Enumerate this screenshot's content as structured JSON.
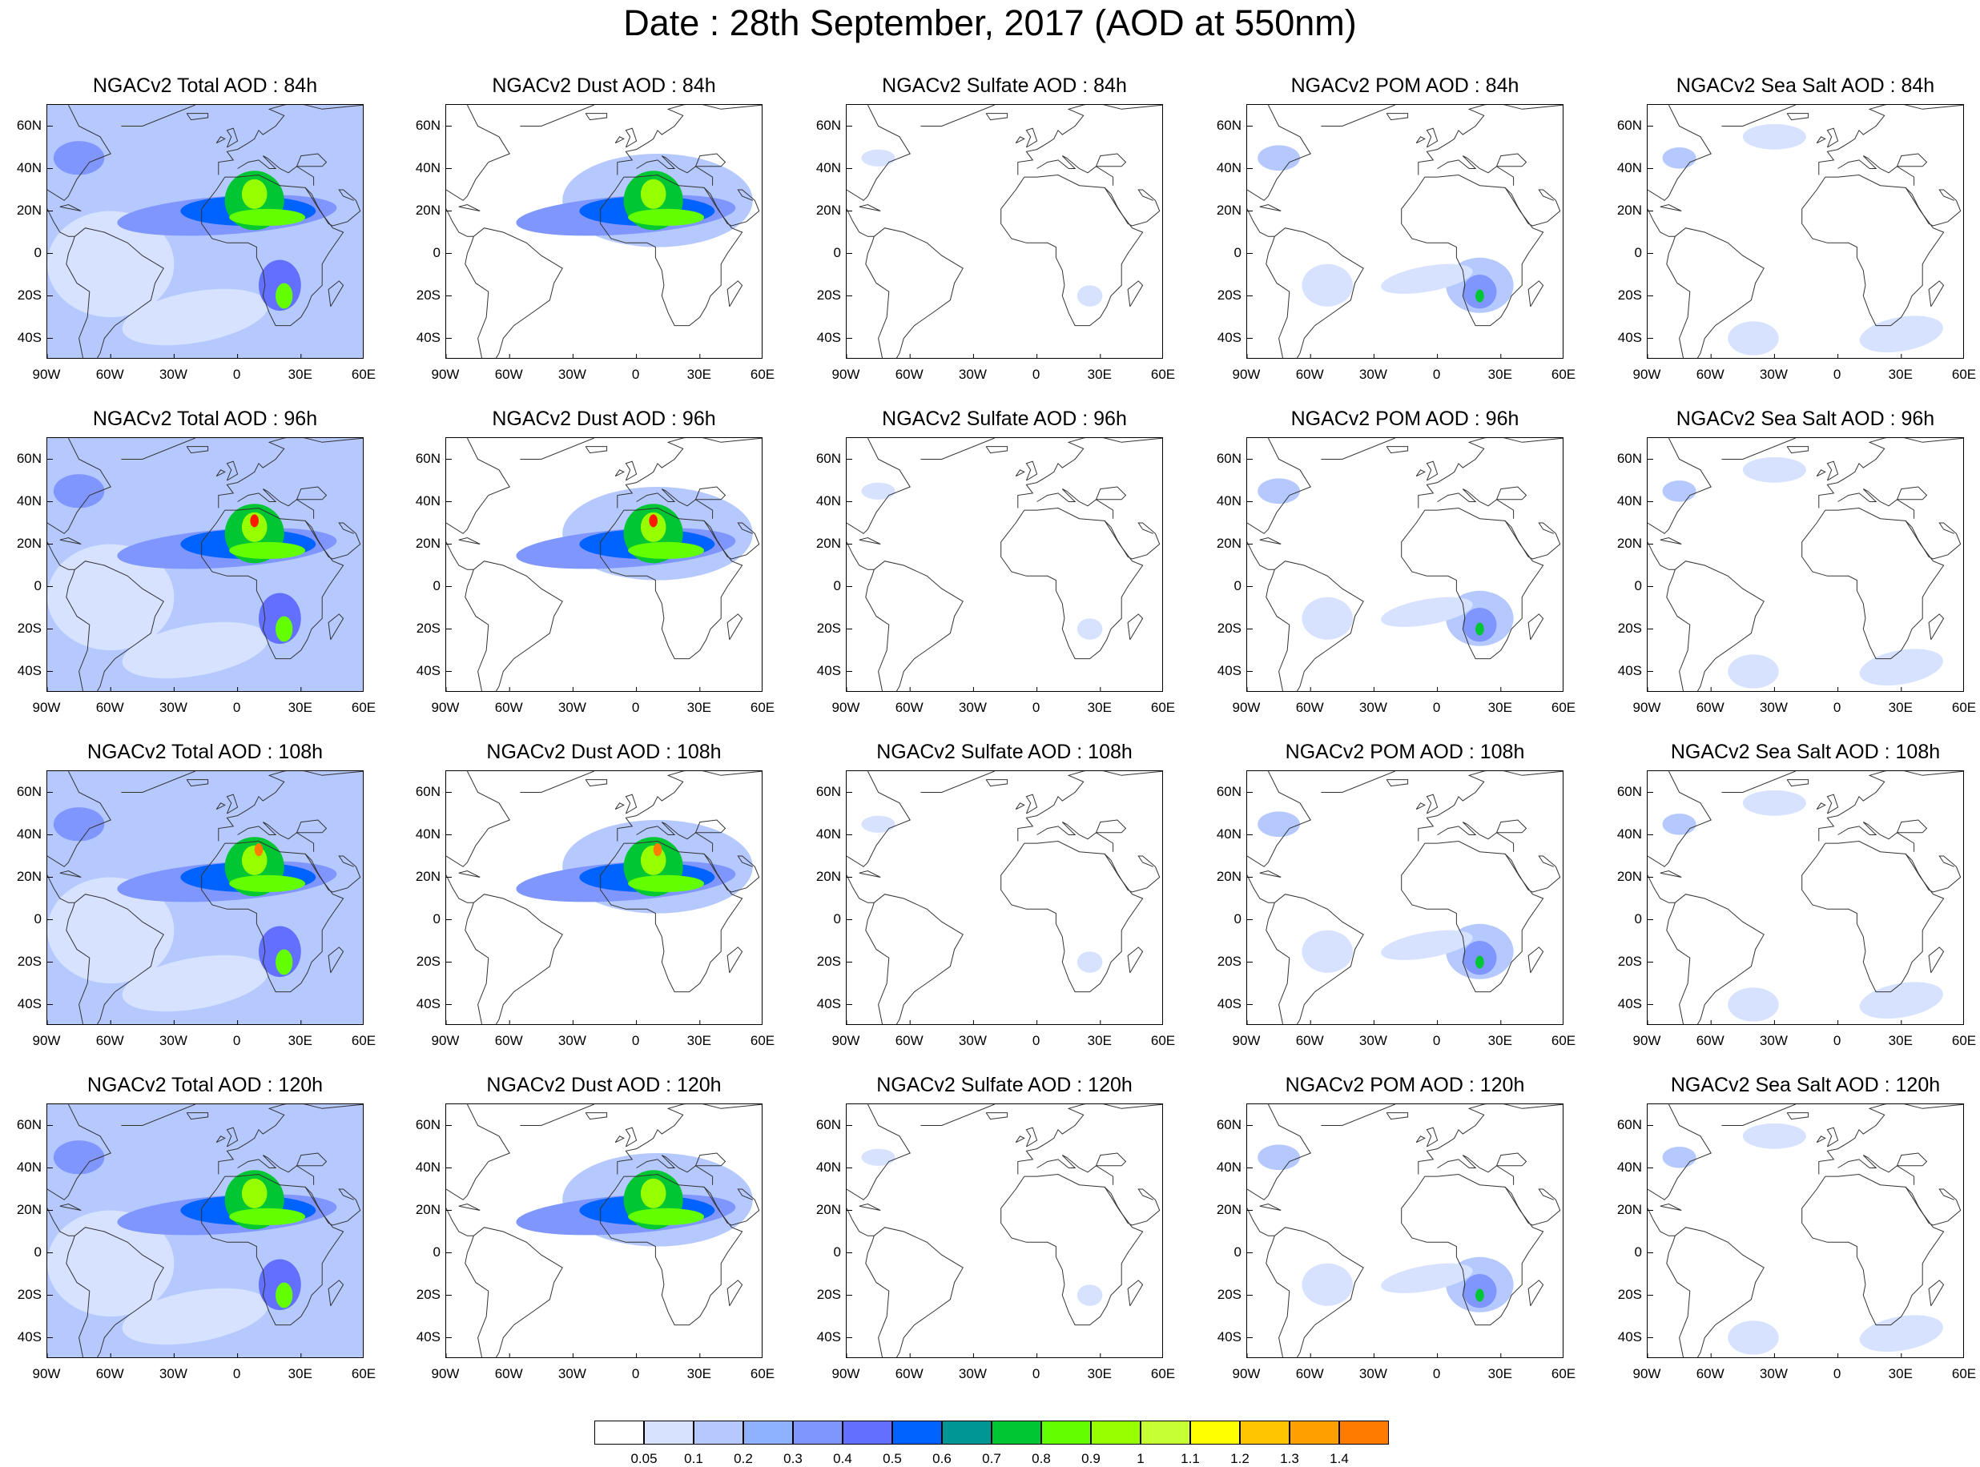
{
  "title": "Date : 28th September, 2017 (AOD at 550nm)",
  "panels": [
    [
      "NGACv2 Total AOD : 84h",
      "NGACv2 Dust AOD : 84h",
      "NGACv2 Sulfate AOD : 84h",
      "NGACv2 POM AOD : 84h",
      "NGACv2 Sea Salt AOD : 84h"
    ],
    [
      "NGACv2 Total AOD : 96h",
      "NGACv2 Dust AOD : 96h",
      "NGACv2 Sulfate AOD : 96h",
      "NGACv2 POM AOD : 96h",
      "NGACv2 Sea Salt AOD : 96h"
    ],
    [
      "NGACv2 Total AOD : 108h",
      "NGACv2 Dust AOD : 108h",
      "NGACv2 Sulfate AOD : 108h",
      "NGACv2 POM AOD : 108h",
      "NGACv2 Sea Salt AOD : 108h"
    ],
    [
      "NGACv2 Total AOD : 120h",
      "NGACv2 Dust AOD : 120h",
      "NGACv2 Sulfate AOD : 120h",
      "NGACv2 POM AOD : 120h",
      "NGACv2 Sea Salt  AOD : 120h"
    ]
  ],
  "lat_labels": [
    "60N",
    "40N",
    "20N",
    "0",
    "20S",
    "40S"
  ],
  "lon_labels": [
    "90W",
    "60W",
    "30W",
    "0",
    "30E",
    "60E"
  ],
  "legend": {
    "labels": [
      "0.05",
      "0.1",
      "0.2",
      "0.3",
      "0.4",
      "0.5",
      "0.6",
      "0.7",
      "0.8",
      "0.9",
      "1",
      "1.1",
      "1.2",
      "1.3",
      "1.4"
    ],
    "colors": [
      "#ffffff",
      "#d6e2ff",
      "#b5c9ff",
      "#8eb2ff",
      "#7f96ff",
      "#6370ff",
      "#0063ff",
      "#009696",
      "#00c633",
      "#63ff00",
      "#96ff00",
      "#c6ff33",
      "#ffff00",
      "#ffc600",
      "#ffa000",
      "#ff7c00",
      "#ff1900"
    ]
  }
}
